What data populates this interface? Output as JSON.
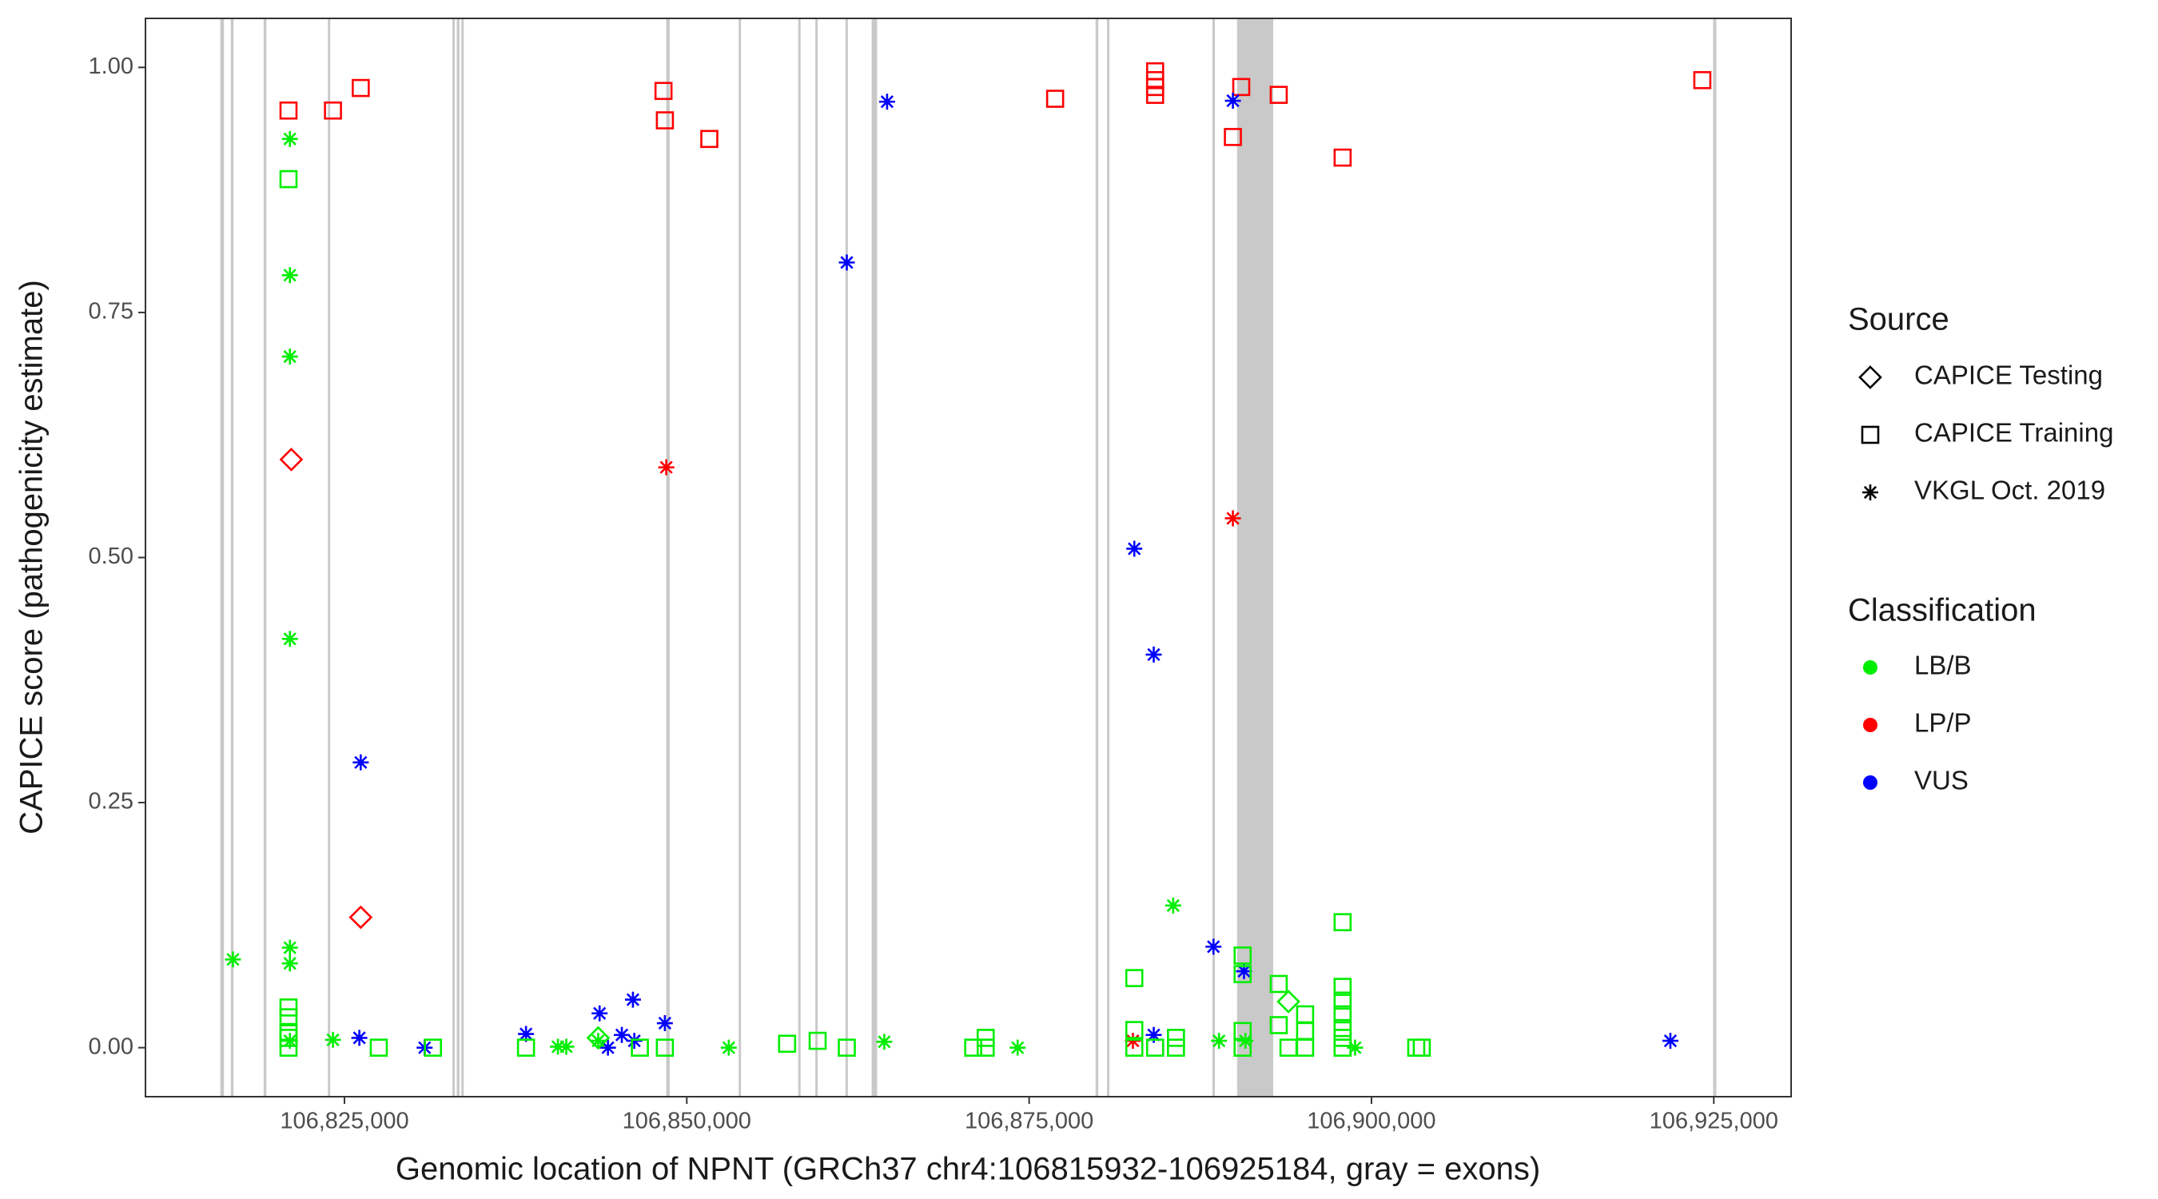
{
  "chart_data": {
    "type": "scatter",
    "x_label": "Genomic location of NPNT (GRCh37 chr4:106815932-106925184, gray = exons)",
    "y_label": "CAPICE score (pathogenicity estimate)",
    "xlim": [
      106810469,
      106930647
    ],
    "ylim": [
      -0.05,
      1.05
    ],
    "xticks": [
      {
        "value": 106825000,
        "label": "106,825,000"
      },
      {
        "value": 106850000,
        "label": "106,850,000"
      },
      {
        "value": 106875000,
        "label": "106,875,000"
      },
      {
        "value": 106900000,
        "label": "106,900,000"
      },
      {
        "value": 106925000,
        "label": "106,925,000"
      }
    ],
    "yticks": [
      {
        "value": 0,
        "label": "0.00"
      },
      {
        "value": 0.25,
        "label": "0.25"
      },
      {
        "value": 0.5,
        "label": "0.50"
      },
      {
        "value": 0.75,
        "label": "0.75"
      },
      {
        "value": 1,
        "label": "1.00"
      }
    ],
    "grid": false,
    "exon_color": "#c9c9c9",
    "exons": [
      [
        106815932,
        106816200
      ],
      [
        106816700,
        106816900
      ],
      [
        106819100,
        106819300
      ],
      [
        106823800,
        106823950
      ],
      [
        106832900,
        106833050
      ],
      [
        106833200,
        106833400
      ],
      [
        106833550,
        106833700
      ],
      [
        106848500,
        106848750
      ],
      [
        106853800,
        106853950
      ],
      [
        106858150,
        106858300
      ],
      [
        106859400,
        106859550
      ],
      [
        106861600,
        106861750
      ],
      [
        106863500,
        106863900
      ],
      [
        106879850,
        106880050
      ],
      [
        106880700,
        106880850
      ],
      [
        106888400,
        106888550
      ],
      [
        106890185,
        106892823
      ],
      [
        106924950,
        106925184
      ]
    ],
    "source_legend": {
      "title": "Source",
      "items": [
        {
          "label": "CAPICE Testing",
          "shape": "diamond"
        },
        {
          "label": "CAPICE Training",
          "shape": "square"
        },
        {
          "label": "VKGL Oct. 2019",
          "shape": "star"
        }
      ]
    },
    "class_legend": {
      "title": "Classification",
      "items": [
        {
          "label": "LB/B",
          "color": "#00ee00"
        },
        {
          "label": "LP/P",
          "color": "#ff0000"
        },
        {
          "label": "VUS",
          "color": "#0000ff"
        }
      ]
    },
    "series": [
      {
        "source": "CAPICE Training",
        "classification": "LP/P",
        "x": [
          106820915,
          106824161,
          106826189,
          106848299,
          106848400,
          106851646,
          106876899,
          106884201,
          106884201,
          106884201,
          106884201,
          106889881,
          106890490,
          106893228,
          106897893,
          106924161
        ],
        "y": [
          0.956,
          0.956,
          0.979,
          0.976,
          0.946,
          0.927,
          0.968,
          0.996,
          0.987,
          0.98,
          0.972,
          0.929,
          0.98,
          0.972,
          0.908,
          0.987
        ]
      },
      {
        "source": "CAPICE Testing",
        "classification": "LP/P",
        "x": [
          106821118,
          106826189
        ],
        "y": [
          0.6,
          0.133
        ]
      },
      {
        "source": "VKGL Oct. 2019",
        "classification": "LP/P",
        "x": [
          106848502,
          106889881,
          106882579
        ],
        "y": [
          0.592,
          0.54,
          0.007
        ]
      },
      {
        "source": "VKGL Oct. 2019",
        "classification": "VUS",
        "x": [
          106826189,
          106826089,
          106830854,
          106838258,
          106843633,
          106844242,
          106845256,
          106846067,
          106846168,
          106848400,
          106861686,
          106864627,
          106882680,
          106884100,
          106884100,
          106888461,
          106889881,
          106890693,
          106921829
        ],
        "y": [
          0.291,
          0.01,
          0,
          0.014,
          0.035,
          0,
          0.013,
          0.049,
          0.007,
          0.025,
          0.801,
          0.965,
          0.509,
          0.401,
          0.013,
          0.103,
          0.966,
          0.078,
          0.007
        ]
      },
      {
        "source": "VKGL Oct. 2019",
        "classification": "LB/B",
        "x": [
          106816858,
          106821017,
          106821017,
          106821017,
          106821017,
          106821017,
          106821017,
          106821017,
          106824161,
          106840591,
          106841200,
          106843532,
          106853066,
          106864424,
          106874161,
          106885520,
          106888867,
          106890795,
          106898806
        ],
        "y": [
          0.09,
          0.927,
          0.788,
          0.705,
          0.417,
          0.102,
          0.086,
          0.007,
          0.008,
          0.001,
          0.001,
          0.007,
          0,
          0.006,
          0,
          0.145,
          0.007,
          0.007,
          0
        ]
      },
      {
        "source": "CAPICE Training",
        "classification": "LB/B",
        "x": [
          106820915,
          106820915,
          106820915,
          106820915,
          106820915,
          106820915,
          106827508,
          106831463,
          106838258,
          106846575,
          106848400,
          106857325,
          106859556,
          106861686,
          106870916,
          106871828,
          106871828,
          106882680,
          106882680,
          106882680,
          106884201,
          106885724,
          106885724,
          106890591,
          106890591,
          106890591,
          106890591,
          106893228,
          106893228,
          106893939,
          106895155,
          106895155,
          106895155,
          106897893,
          106897893,
          106897893,
          106897893,
          106897893,
          106897893,
          106897893,
          106903268,
          106903674
        ],
        "y": [
          0.886,
          0.041,
          0.031,
          0.016,
          0.01,
          0,
          0,
          0,
          0,
          0,
          0,
          0.004,
          0.007,
          0,
          0,
          0.01,
          0,
          0.071,
          0.018,
          0,
          0,
          0.01,
          0,
          0.094,
          0.075,
          0.017,
          0,
          0.065,
          0.023,
          0,
          0.034,
          0.017,
          0,
          0.128,
          0.062,
          0.048,
          0.034,
          0.02,
          0.01,
          0,
          0,
          0
        ]
      },
      {
        "source": "CAPICE Testing",
        "classification": "LB/B",
        "x": [
          106893939,
          106843532
        ],
        "y": [
          0.047,
          0.01
        ]
      }
    ]
  }
}
